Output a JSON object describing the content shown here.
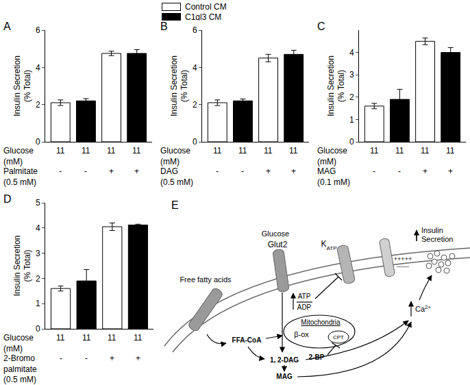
{
  "chart_data": [
    {
      "panel": "A",
      "type": "bar",
      "ylabel": "Insulin Secretion\n(% Total)",
      "categories": [
        null,
        null,
        null,
        null
      ],
      "x_table": [
        {
          "label": "Glucose\n(mM)",
          "cells": [
            "11",
            "11",
            "11",
            "11"
          ]
        },
        {
          "label": "Palmitate\n(0.5 mM)",
          "cells": [
            "-",
            "-",
            "+",
            "+"
          ]
        }
      ],
      "series": [
        {
          "name": "Control CM",
          "color": "#ffffff",
          "values": [
            2.1,
            null,
            4.75,
            null
          ],
          "errors": [
            0.15,
            null,
            0.12,
            null
          ]
        },
        {
          "name": "C1ql3 CM",
          "color": "#000000",
          "values": [
            null,
            2.2,
            null,
            4.75
          ],
          "errors": [
            null,
            0.12,
            null,
            0.2
          ]
        }
      ],
      "ylim": [
        0,
        6
      ],
      "yticks": [
        0,
        2,
        4,
        6
      ],
      "grid": false
    },
    {
      "panel": "B",
      "type": "bar",
      "ylabel": "Insulin Secretion\n(% Total)",
      "categories": [
        null,
        null,
        null,
        null
      ],
      "x_table": [
        {
          "label": "Glucose\n(mM)",
          "cells": [
            "11",
            "11",
            "11",
            "11"
          ]
        },
        {
          "label": "DAG\n(0.5 mM)",
          "cells": [
            "-",
            "-",
            "+",
            "+"
          ]
        }
      ],
      "series": [
        {
          "name": "Control CM",
          "color": "#ffffff",
          "values": [
            2.1,
            null,
            4.5,
            null
          ],
          "errors": [
            0.15,
            null,
            0.2,
            null
          ]
        },
        {
          "name": "C1ql3 CM",
          "color": "#000000",
          "values": [
            null,
            2.2,
            null,
            4.7
          ],
          "errors": [
            null,
            0.1,
            null,
            0.22
          ]
        }
      ],
      "ylim": [
        0,
        6
      ],
      "yticks": [
        0,
        2,
        4,
        6
      ],
      "grid": false
    },
    {
      "panel": "C",
      "type": "bar",
      "ylabel": "Insulin Secretion\n(% Total)",
      "categories": [
        null,
        null,
        null,
        null
      ],
      "x_table": [
        {
          "label": "Glucose\n(mM)",
          "cells": [
            "11",
            "11",
            "11",
            "11"
          ]
        },
        {
          "label": "MAG\n(0.1 mM)",
          "cells": [
            "-",
            "-",
            "+",
            "+"
          ]
        }
      ],
      "series": [
        {
          "name": "Control CM",
          "color": "#ffffff",
          "values": [
            1.6,
            null,
            4.5,
            null
          ],
          "errors": [
            0.12,
            null,
            0.15,
            null
          ]
        },
        {
          "name": "C1ql3 CM",
          "color": "#000000",
          "values": [
            null,
            1.9,
            null,
            4.0
          ],
          "errors": [
            null,
            0.45,
            null,
            0.22
          ]
        }
      ],
      "ylim": [
        0,
        5
      ],
      "yticks": [
        0,
        1,
        2,
        3,
        4
      ],
      "grid": false
    },
    {
      "panel": "D",
      "type": "bar",
      "ylabel": "Insulin Secretion\n(% Total)",
      "categories": [
        null,
        null,
        null,
        null
      ],
      "x_table": [
        {
          "label": "Glucose\n(mM)",
          "cells": [
            "11",
            "11",
            "11",
            "11"
          ]
        },
        {
          "label": "2-Bromo\npalmitate\n(0.5 mM)",
          "cells": [
            "-",
            "-",
            "+",
            "+"
          ]
        }
      ],
      "series": [
        {
          "name": "Control CM",
          "color": "#ffffff",
          "values": [
            1.6,
            null,
            4.05,
            null
          ],
          "errors": [
            0.1,
            null,
            0.15,
            null
          ]
        },
        {
          "name": "C1ql3 CM",
          "color": "#000000",
          "values": [
            null,
            1.9,
            null,
            4.12
          ],
          "errors": [
            null,
            0.45,
            null,
            0.03
          ]
        }
      ],
      "ylim": [
        0,
        5
      ],
      "yticks": [
        0,
        1,
        2,
        3,
        4,
        5
      ],
      "grid": false
    }
  ],
  "diagram": {
    "label": "E",
    "free_fatty_acids": "Free fatty acids",
    "glucose": "Glucose",
    "glut2": "Glut2",
    "katp": {
      "text": "K",
      "sub": "ATP"
    },
    "membrane_charge": [
      "+++++",
      "------"
    ],
    "insulin_secretion": [
      "Insulin",
      "Secretion"
    ],
    "atp": "ATP",
    "adp": "ADP",
    "mitochondria": "Mitochondria",
    "beta_ox": "β-ox",
    "cpt": "CPT",
    "inhibitor": "2-BP",
    "ffa_coa": "FFA-CoA",
    "dag": "1, 2-DAG",
    "mag": "MAG",
    "calcium": {
      "text": "Ca",
      "sup": "2+"
    }
  }
}
